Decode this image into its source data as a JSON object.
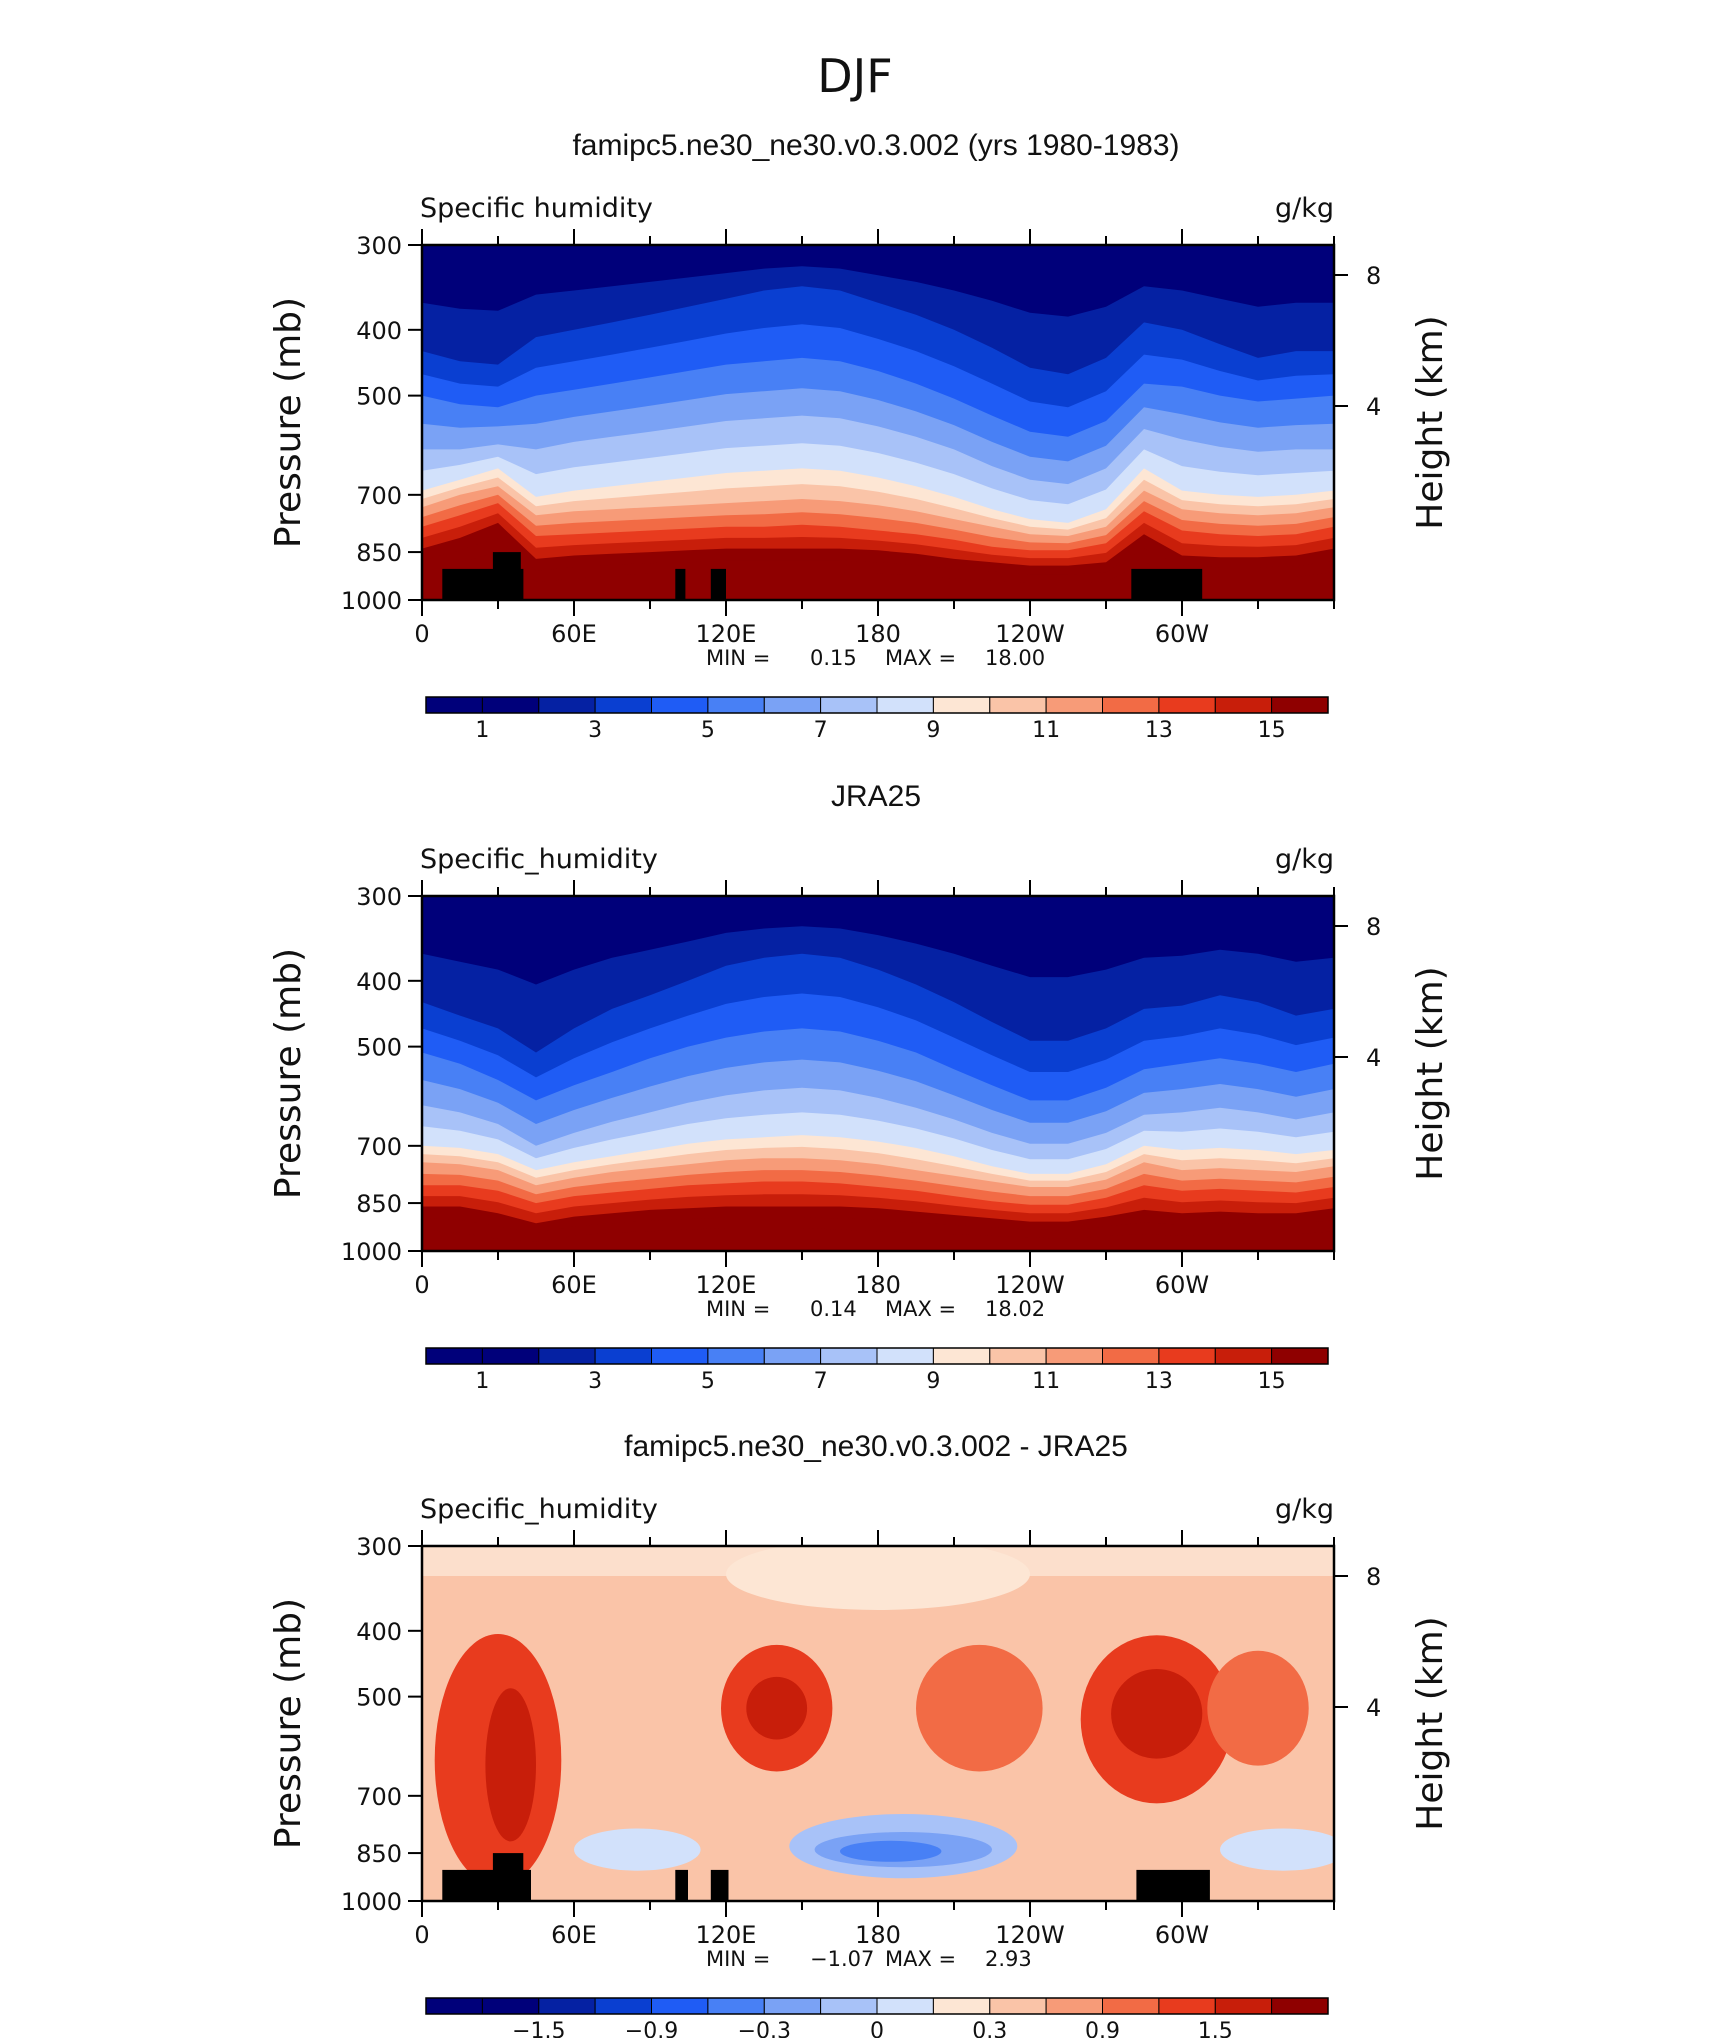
{
  "figure_title": "DJF",
  "colors": {
    "palette": [
      "#00007a",
      "#0521a3",
      "#0a3fd1",
      "#1f5cf5",
      "#4880f5",
      "#7aa2f5",
      "#a8c2f8",
      "#d2e1fb",
      "#fde6d4",
      "#fac4a8",
      "#f79b78",
      "#f26b45",
      "#e83b1e",
      "#c81e0a",
      "#8f0000"
    ],
    "terrain": "#000000"
  },
  "panels": [
    {
      "title": "famipc5.ne30_ne30.v0.3.002 (yrs 1980-1983)",
      "variable": "Specific humidity",
      "units": "g/kg",
      "ylabel": "Pressure (mb)",
      "ylabel2": "Height (km)",
      "min_label": "MIN =",
      "min_value": "0.15",
      "max_label": "MAX =",
      "max_value": "18.00",
      "colorbar_ticks": [
        "1",
        "3",
        "5",
        "7",
        "9",
        "11",
        "13",
        "15"
      ]
    },
    {
      "title": "JRA25",
      "variable": "Specific_humidity",
      "units": "g/kg",
      "ylabel": "Pressure (mb)",
      "ylabel2": "Height (km)",
      "min_label": "MIN =",
      "min_value": "0.14",
      "max_label": "MAX =",
      "max_value": "18.02",
      "colorbar_ticks": [
        "1",
        "3",
        "5",
        "7",
        "9",
        "11",
        "13",
        "15"
      ]
    },
    {
      "title": "famipc5.ne30_ne30.v0.3.002 - JRA25",
      "variable": "Specific_humidity",
      "units": "g/kg",
      "ylabel": "Pressure (mb)",
      "ylabel2": "Height (km)",
      "min_label": "MIN =",
      "min_value": "−1.07",
      "max_label": "MAX =",
      "max_value": "2.93",
      "colorbar_ticks": [
        "−1.5",
        "−0.9",
        "−0.3",
        "0",
        "0.3",
        "0.9",
        "1.5"
      ]
    }
  ],
  "chart_data": [
    {
      "type": "heatmap",
      "title": "famipc5.ne30_ne30.v0.3.002 (yrs 1980-1983)",
      "xlabel": "",
      "ylabel": "Pressure (mb)",
      "y2label": "Height (km)",
      "x_ticks": [
        "0",
        "60E",
        "120E",
        "180",
        "120W",
        "60W"
      ],
      "y_ticks": [
        300,
        400,
        500,
        700,
        850,
        1000
      ],
      "y2_ticks": [
        8,
        4
      ],
      "ylim": [
        1000,
        300
      ],
      "x_dense": [
        0,
        15,
        30,
        45,
        60,
        75,
        90,
        105,
        120,
        135,
        150,
        165,
        180,
        195,
        210,
        225,
        240,
        255,
        270,
        285,
        300,
        315,
        330,
        345,
        360
      ],
      "levels_upper": [
        {
          "level": 2,
          "p": [
            430,
            445,
            450,
            410,
            400,
            390,
            380,
            370,
            360,
            350,
            345,
            350,
            365,
            380,
            400,
            425,
            455,
            465,
            440,
            390,
            400,
            420,
            440,
            430,
            430
          ]
        },
        {
          "level": 4,
          "p": [
            500,
            515,
            520,
            500,
            490,
            480,
            470,
            460,
            450,
            445,
            440,
            445,
            460,
            480,
            505,
            535,
            565,
            575,
            545,
            480,
            485,
            500,
            510,
            505,
            500
          ]
        },
        {
          "level": 6,
          "p": [
            600,
            600,
            590,
            600,
            585,
            575,
            565,
            555,
            545,
            540,
            535,
            540,
            555,
            575,
            600,
            635,
            665,
            675,
            640,
            560,
            580,
            595,
            605,
            600,
            600
          ]
        },
        {
          "level": 8,
          "p": [
            690,
            665,
            640,
            705,
            690,
            680,
            670,
            660,
            650,
            645,
            640,
            645,
            660,
            680,
            705,
            735,
            760,
            770,
            735,
            640,
            690,
            700,
            705,
            700,
            690
          ]
        }
      ],
      "levels_lower": [
        {
          "level": 10,
          "p": [
            730,
            700,
            680,
            750,
            740,
            735,
            730,
            725,
            720,
            715,
            710,
            715,
            725,
            740,
            760,
            780,
            800,
            805,
            780,
            690,
            735,
            745,
            750,
            745,
            730
          ]
        },
        {
          "level": 12,
          "p": [
            780,
            750,
            720,
            805,
            800,
            795,
            790,
            785,
            780,
            780,
            775,
            780,
            790,
            800,
            815,
            835,
            845,
            845,
            825,
            740,
            790,
            800,
            805,
            800,
            780
          ]
        },
        {
          "level": 14,
          "p": [
            840,
            810,
            770,
            870,
            860,
            855,
            850,
            845,
            840,
            840,
            840,
            840,
            845,
            855,
            870,
            880,
            890,
            890,
            880,
            800,
            860,
            865,
            865,
            860,
            840
          ]
        },
        {
          "level": 16,
          "p": [
            910,
            880,
            850,
            940,
            930,
            920,
            915,
            915,
            910,
            910,
            910,
            910,
            915,
            920,
            930,
            935,
            945,
            945,
            940,
            880,
            920,
            925,
            925,
            925,
            910
          ]
        }
      ],
      "terrain_blocks": [
        {
          "lon_start": 8,
          "lon_end": 40,
          "p_top": 900
        },
        {
          "lon_start": 28,
          "lon_end": 39,
          "p_top": 850
        },
        {
          "lon_start": 100,
          "lon_end": 104,
          "p_top": 900
        },
        {
          "lon_start": 114,
          "lon_end": 120,
          "p_top": 900
        },
        {
          "lon_start": 280,
          "lon_end": 308,
          "p_top": 900
        }
      ],
      "min": 0.15,
      "max": 18.0
    },
    {
      "type": "heatmap",
      "title": "JRA25",
      "xlabel": "",
      "ylabel": "Pressure (mb)",
      "y2label": "Height (km)",
      "x_ticks": [
        "0",
        "60E",
        "120E",
        "180",
        "120W",
        "60W"
      ],
      "y_ticks": [
        300,
        400,
        500,
        700,
        850,
        1000
      ],
      "y2_ticks": [
        8,
        4
      ],
      "ylim": [
        1000,
        300
      ],
      "x_dense": [
        0,
        15,
        30,
        45,
        60,
        75,
        90,
        105,
        120,
        135,
        150,
        165,
        180,
        195,
        210,
        225,
        240,
        255,
        270,
        285,
        300,
        315,
        330,
        345,
        360
      ],
      "levels_upper": [
        {
          "level": 2,
          "p": [
            430,
            450,
            470,
            510,
            470,
            440,
            420,
            400,
            380,
            370,
            365,
            370,
            385,
            405,
            430,
            460,
            490,
            490,
            470,
            440,
            435,
            420,
            430,
            450,
            440
          ]
        },
        {
          "level": 4,
          "p": [
            510,
            530,
            560,
            600,
            570,
            545,
            520,
            500,
            485,
            475,
            470,
            475,
            490,
            510,
            540,
            570,
            600,
            600,
            575,
            540,
            530,
            520,
            530,
            545,
            530
          ]
        },
        {
          "level": 6,
          "p": [
            610,
            625,
            650,
            700,
            670,
            645,
            625,
            605,
            590,
            580,
            575,
            580,
            595,
            615,
            640,
            670,
            695,
            695,
            670,
            630,
            625,
            615,
            625,
            640,
            625
          ]
        },
        {
          "level": 8,
          "p": [
            700,
            705,
            720,
            760,
            740,
            725,
            710,
            695,
            685,
            680,
            675,
            680,
            690,
            705,
            725,
            750,
            770,
            770,
            745,
            700,
            710,
            705,
            710,
            720,
            710
          ]
        }
      ],
      "levels_lower": [
        {
          "level": 10,
          "p": [
            740,
            745,
            760,
            800,
            780,
            765,
            755,
            745,
            735,
            730,
            730,
            735,
            745,
            760,
            775,
            790,
            805,
            805,
            785,
            740,
            760,
            755,
            760,
            765,
            750
          ]
        },
        {
          "level": 12,
          "p": [
            800,
            800,
            815,
            850,
            830,
            820,
            810,
            800,
            795,
            790,
            790,
            795,
            805,
            815,
            830,
            845,
            855,
            855,
            835,
            800,
            815,
            810,
            815,
            820,
            805
          ]
        },
        {
          "level": 14,
          "p": [
            860,
            860,
            880,
            910,
            890,
            880,
            870,
            865,
            860,
            860,
            860,
            860,
            865,
            875,
            885,
            895,
            905,
            905,
            890,
            870,
            880,
            875,
            880,
            880,
            865
          ]
        },
        {
          "level": 16,
          "p": [
            930,
            940,
            960,
            970,
            950,
            940,
            935,
            930,
            925,
            925,
            925,
            930,
            935,
            940,
            945,
            950,
            955,
            960,
            950,
            945,
            950,
            945,
            945,
            945,
            935
          ]
        }
      ],
      "terrain_blocks": [],
      "min": 0.14,
      "max": 18.02
    },
    {
      "type": "heatmap",
      "title": "famipc5.ne30_ne30.v0.3.002 - JRA25",
      "xlabel": "",
      "ylabel": "Pressure (mb)",
      "y2label": "Height (km)",
      "x_ticks": [
        "0",
        "60E",
        "120E",
        "180",
        "120W",
        "60W"
      ],
      "y_ticks": [
        300,
        400,
        500,
        700,
        850,
        1000
      ],
      "y2_ticks": [
        8,
        4
      ],
      "ylim": [
        1000,
        300
      ],
      "diff_base_level": 9,
      "diff_blobs": [
        {
          "lon": 140,
          "p": 520,
          "r_lon": 22,
          "r_p": 110,
          "level": 12
        },
        {
          "lon": 140,
          "p": 520,
          "r_lon": 12,
          "r_p": 55,
          "level": 13
        },
        {
          "lon": 190,
          "p": 830,
          "r_lon": 45,
          "r_p": 90,
          "level": 6
        },
        {
          "lon": 190,
          "p": 840,
          "r_lon": 35,
          "r_p": 50,
          "level": 5
        },
        {
          "lon": 185,
          "p": 845,
          "r_lon": 20,
          "r_p": 30,
          "level": 4
        },
        {
          "lon": 290,
          "p": 540,
          "r_lon": 30,
          "r_p": 150,
          "level": 12
        },
        {
          "lon": 290,
          "p": 530,
          "r_lon": 18,
          "r_p": 80,
          "level": 13
        },
        {
          "lon": 30,
          "p": 620,
          "r_lon": 25,
          "r_p": 250,
          "level": 12
        },
        {
          "lon": 35,
          "p": 630,
          "r_lon": 10,
          "r_p": 160,
          "level": 13
        },
        {
          "lon": 220,
          "p": 520,
          "r_lon": 25,
          "r_p": 110,
          "level": 11
        },
        {
          "lon": 330,
          "p": 520,
          "r_lon": 20,
          "r_p": 100,
          "level": 11
        },
        {
          "lon": 340,
          "p": 840,
          "r_lon": 25,
          "r_p": 60,
          "level": 7
        },
        {
          "lon": 85,
          "p": 840,
          "r_lon": 25,
          "r_p": 60,
          "level": 7
        },
        {
          "lon": 180,
          "p": 330,
          "r_lon": 60,
          "r_p": 40,
          "level": 8
        }
      ],
      "terrain_blocks": [
        {
          "lon_start": 8,
          "lon_end": 43,
          "p_top": 900
        },
        {
          "lon_start": 28,
          "lon_end": 40,
          "p_top": 850
        },
        {
          "lon_start": 100,
          "lon_end": 105,
          "p_top": 900
        },
        {
          "lon_start": 114,
          "lon_end": 121,
          "p_top": 900
        },
        {
          "lon_start": 282,
          "lon_end": 311,
          "p_top": 900
        }
      ],
      "min": -1.07,
      "max": 2.93
    }
  ]
}
